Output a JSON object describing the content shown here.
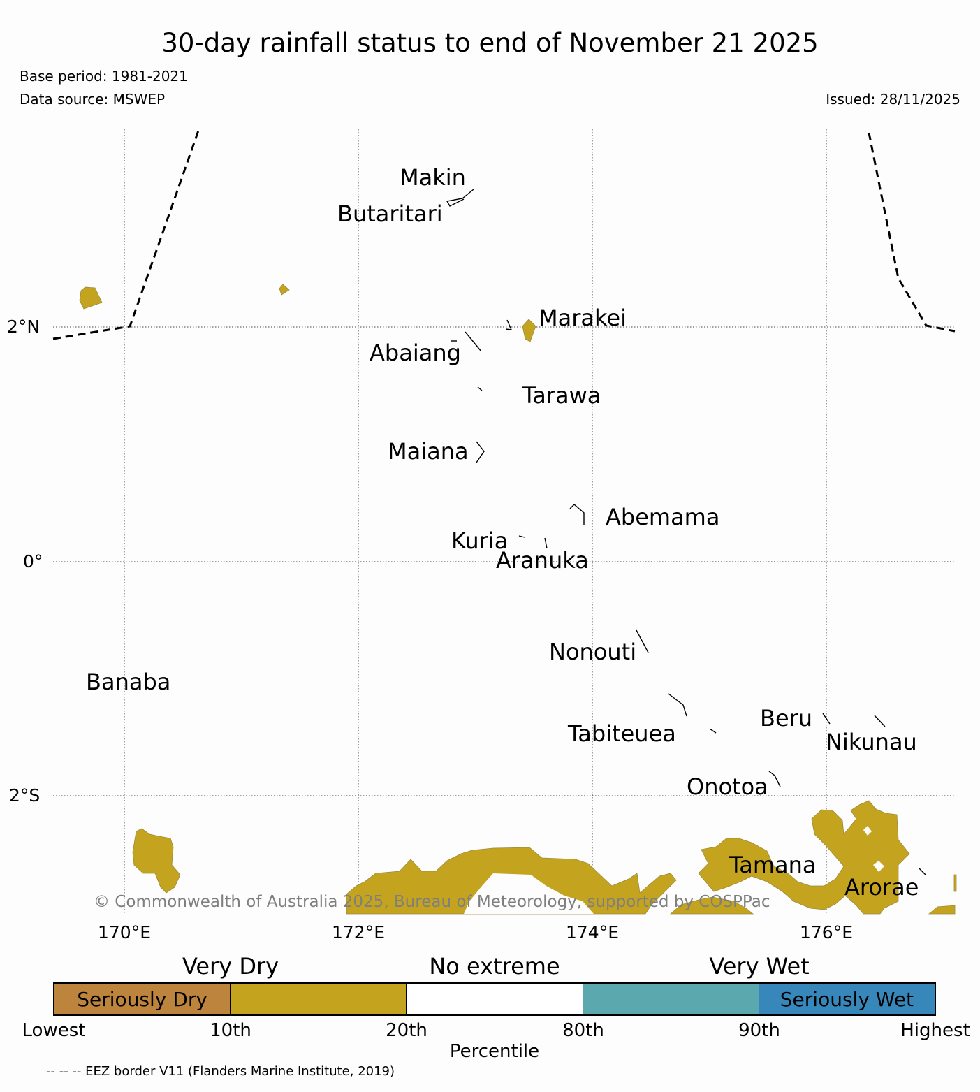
{
  "title": "30-day rainfall status to end of November 21 2025",
  "base_period": "Base period: 1981-2021",
  "data_source": "Data source: MSWEP",
  "issued": "Issued: 28/11/2025",
  "map": {
    "lon_ticks": [
      "170°E",
      "172°E",
      "174°E",
      "176°E"
    ],
    "lat_ticks": [
      "2°N",
      "0°",
      "2°S"
    ],
    "islands": [
      "Makin",
      "Butaritari",
      "Marakei",
      "Abaiang",
      "Tarawa",
      "Maiana",
      "Abemama",
      "Kuria",
      "Aranuka",
      "Nonouti",
      "Banaba",
      "Tabiteuea",
      "Beru",
      "Nikunau",
      "Onotoa",
      "Tamana",
      "Arorae"
    ],
    "copyright": "© Commonwealth of Australia 2025, Bureau of Meteorology, supported by COSPPac"
  },
  "legend": {
    "categories": [
      "Very Dry",
      "No extreme",
      "Very Wet"
    ],
    "segments": [
      {
        "label": "Seriously Dry",
        "color": "#bc843d"
      },
      {
        "label": "",
        "color": "#c4a41e"
      },
      {
        "label": "",
        "color": "#ffffff"
      },
      {
        "label": "",
        "color": "#5ba9ae"
      },
      {
        "label": "Seriously Wet",
        "color": "#3787bb"
      }
    ],
    "percentiles": [
      "Lowest",
      "10th",
      "20th",
      "80th",
      "90th",
      "Highest"
    ],
    "axis_label": "Percentile"
  },
  "footnote": "-- -- -- EEZ border V11 (Flanders Marine Institute, 2019)"
}
